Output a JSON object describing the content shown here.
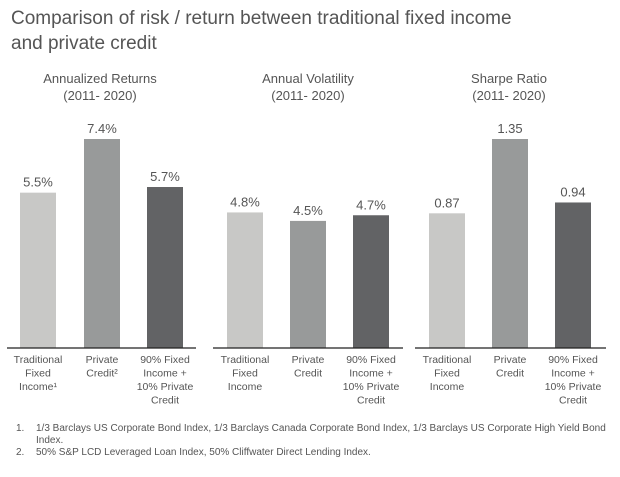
{
  "title_line1": "Comparison of risk / return between traditional fixed income",
  "title_line2": "and private credit",
  "chart_data": [
    {
      "type": "bar",
      "title": "Annualized Returns",
      "subtitle": "(2011- 2020)",
      "categories": [
        [
          "Traditional",
          "Fixed",
          "Income¹"
        ],
        [
          "Private",
          "Credit²"
        ],
        [
          "90% Fixed",
          "Income +",
          "10% Private",
          "Credit"
        ]
      ],
      "values": [
        5.5,
        7.4,
        5.7
      ],
      "labels": [
        "5.5%",
        "7.4%",
        "5.7%"
      ],
      "ylim": [
        0,
        7.4
      ],
      "grid": false
    },
    {
      "type": "bar",
      "title": "Annual Volatility",
      "subtitle": "(2011- 2020)",
      "categories": [
        [
          "Traditional",
          "Fixed",
          "Income"
        ],
        [
          "Private",
          "Credit"
        ],
        [
          "90% Fixed",
          "Income +",
          "10% Private",
          "Credit"
        ]
      ],
      "values": [
        4.8,
        4.5,
        4.7
      ],
      "labels": [
        "4.8%",
        "4.5%",
        "4.7%"
      ],
      "ylim": [
        0,
        7.4
      ],
      "grid": false
    },
    {
      "type": "bar",
      "title": "Sharpe Ratio",
      "subtitle": "(2011- 2020)",
      "categories": [
        [
          "Traditional",
          "Fixed",
          "Income"
        ],
        [
          "Private",
          "Credit"
        ],
        [
          "90% Fixed",
          "Income +",
          "10% Private",
          "Credit"
        ]
      ],
      "values": [
        0.87,
        1.35,
        0.94
      ],
      "labels": [
        "0.87",
        "1.35",
        "0.94"
      ],
      "ylim": [
        0,
        1.35
      ],
      "grid": false
    }
  ],
  "colors": [
    "#c8c8c6",
    "#989a9a",
    "#626365"
  ],
  "footnotes": [
    {
      "num": "1.",
      "text": "1/3 Barclays US Corporate Bond Index, 1/3 Barclays Canada Corporate Bond Index, 1/3 Barclays US Corporate High Yield Bond Index."
    },
    {
      "num": "2.",
      "text": "50% S&P LCD Leveraged Loan Index, 50% Cliffwater Direct Lending Index."
    }
  ]
}
